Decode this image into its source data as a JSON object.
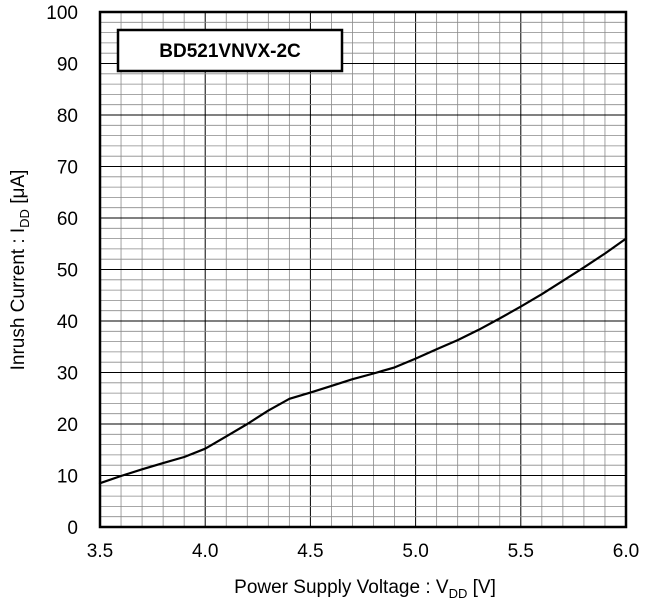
{
  "chart_data": {
    "type": "line",
    "title": "",
    "legend": "BD521VNVX-2C",
    "xlabel": {
      "main": "Power Supply Voltage : V",
      "sub": "DD",
      "unit": " [V]"
    },
    "ylabel": {
      "main": "Inrush Current : I",
      "sub": "DD",
      "unit": " [μA]"
    },
    "xlim": [
      3.5,
      6.0
    ],
    "ylim": [
      0,
      100
    ],
    "xticks": [
      "3.5",
      "4.0",
      "4.5",
      "5.0",
      "5.5",
      "6.0"
    ],
    "yticks": [
      "0",
      "10",
      "20",
      "30",
      "40",
      "50",
      "60",
      "70",
      "80",
      "90",
      "100"
    ],
    "grid": true,
    "series": [
      {
        "name": "BD521VNVX-2C",
        "color": "#000000",
        "x": [
          3.5,
          3.6,
          3.7,
          3.8,
          3.9,
          4.0,
          4.1,
          4.2,
          4.3,
          4.4,
          4.5,
          4.6,
          4.7,
          4.8,
          4.9,
          5.0,
          5.1,
          5.2,
          5.3,
          5.4,
          5.5,
          5.6,
          5.7,
          5.8,
          5.9,
          6.0
        ],
        "y": [
          8.5,
          9.9,
          11.2,
          12.4,
          13.6,
          15.2,
          17.6,
          20.0,
          22.6,
          24.9,
          26.1,
          27.4,
          28.7,
          29.8,
          31.0,
          32.7,
          34.5,
          36.3,
          38.3,
          40.5,
          42.8,
          45.2,
          47.8,
          50.4,
          53.1,
          56.0
        ]
      }
    ]
  }
}
